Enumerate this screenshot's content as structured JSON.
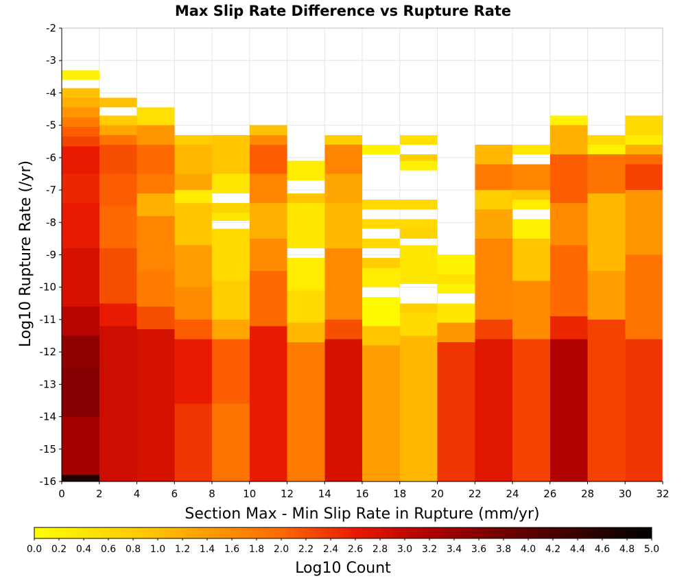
{
  "chart_data": {
    "type": "heatmap",
    "title": "Max Slip Rate Difference vs Rupture Rate",
    "xlabel": "Section Max - Min Slip Rate in Rupture (mm/yr)",
    "ylabel": "Log10 Rupture Rate (/yr)",
    "xlim": [
      0,
      32
    ],
    "ylim": [
      -16,
      -2
    ],
    "x_ticks": [
      "0",
      "2",
      "4",
      "6",
      "8",
      "10",
      "12",
      "14",
      "16",
      "18",
      "20",
      "22",
      "24",
      "26",
      "28",
      "30",
      "32"
    ],
    "y_ticks": [
      "-2",
      "-3",
      "-4",
      "-5",
      "-6",
      "-7",
      "-8",
      "-9",
      "-10",
      "-11",
      "-12",
      "-13",
      "-14",
      "-15",
      "-16"
    ],
    "x_bin_width": 2,
    "y_bin_width": 0.3,
    "colorbar": {
      "label": "Log10 Count",
      "range": [
        0,
        5
      ],
      "tick_labels": [
        "0.0",
        "0.2",
        "0.4",
        "0.6",
        "0.8",
        "1.0",
        "1.2",
        "1.4",
        "1.6",
        "1.8",
        "2.0",
        "2.2",
        "2.4",
        "2.6",
        "2.8",
        "3.0",
        "3.2",
        "3.4",
        "3.6",
        "3.8",
        "4.0",
        "4.2",
        "4.4",
        "4.6",
        "4.8",
        "5.0"
      ],
      "colormap_stops": [
        {
          "value": 0.0,
          "color": "#ffff00"
        },
        {
          "value": 1.0,
          "color": "#ffc000"
        },
        {
          "value": 2.0,
          "color": "#ff6a00"
        },
        {
          "value": 2.6,
          "color": "#e81a00"
        },
        {
          "value": 3.2,
          "color": "#b00000"
        },
        {
          "value": 3.8,
          "color": "#700000"
        },
        {
          "value": 4.4,
          "color": "#380000"
        },
        {
          "value": 5.0,
          "color": "#000000"
        }
      ]
    },
    "columns": [
      {
        "x_start": 0,
        "segments": [
          {
            "y_top": -3.3,
            "y_bottom": -3.6,
            "value": 0.2
          },
          {
            "y_top": -3.85,
            "y_bottom": -4.15,
            "value": 1.0
          },
          {
            "y_top": -4.15,
            "y_bottom": -4.45,
            "value": 1.2
          },
          {
            "y_top": -4.45,
            "y_bottom": -4.75,
            "value": 1.5
          },
          {
            "y_top": -4.75,
            "y_bottom": -5.05,
            "value": 1.8
          },
          {
            "y_top": -5.05,
            "y_bottom": -5.35,
            "value": 2.1
          },
          {
            "y_top": -5.35,
            "y_bottom": -5.65,
            "value": 2.3
          },
          {
            "y_top": -5.65,
            "y_bottom": -6.5,
            "value": 2.6
          },
          {
            "y_top": -6.5,
            "y_bottom": -7.4,
            "value": 2.5
          },
          {
            "y_top": -7.4,
            "y_bottom": -8.8,
            "value": 2.6
          },
          {
            "y_top": -8.8,
            "y_bottom": -10.6,
            "value": 2.8
          },
          {
            "y_top": -10.6,
            "y_bottom": -11.5,
            "value": 3.1
          },
          {
            "y_top": -11.5,
            "y_bottom": -12.5,
            "value": 3.5
          },
          {
            "y_top": -12.5,
            "y_bottom": -14.0,
            "value": 3.6
          },
          {
            "y_top": -14.0,
            "y_bottom": -15.8,
            "value": 3.3
          },
          {
            "y_top": -15.8,
            "y_bottom": -16.0,
            "value": 4.7
          }
        ]
      },
      {
        "x_start": 2,
        "segments": [
          {
            "y_top": -4.15,
            "y_bottom": -4.45,
            "value": 1.0
          },
          {
            "y_top": -4.7,
            "y_bottom": -5.0,
            "value": 0.8
          },
          {
            "y_top": -5.0,
            "y_bottom": -5.3,
            "value": 1.3
          },
          {
            "y_top": -5.3,
            "y_bottom": -5.6,
            "value": 1.9
          },
          {
            "y_top": -5.6,
            "y_bottom": -6.5,
            "value": 2.2
          },
          {
            "y_top": -6.5,
            "y_bottom": -7.5,
            "value": 2.1
          },
          {
            "y_top": -7.5,
            "y_bottom": -8.8,
            "value": 2.0
          },
          {
            "y_top": -8.8,
            "y_bottom": -10.5,
            "value": 2.2
          },
          {
            "y_top": -10.5,
            "y_bottom": -11.2,
            "value": 2.6
          },
          {
            "y_top": -11.2,
            "y_bottom": -16.0,
            "value": 2.9
          }
        ]
      },
      {
        "x_start": 4,
        "segments": [
          {
            "y_top": -4.45,
            "y_bottom": -5.0,
            "value": 0.5
          },
          {
            "y_top": -5.0,
            "y_bottom": -5.6,
            "value": 1.5
          },
          {
            "y_top": -5.6,
            "y_bottom": -6.5,
            "value": 2.0
          },
          {
            "y_top": -6.5,
            "y_bottom": -7.1,
            "value": 1.8
          },
          {
            "y_top": -7.1,
            "y_bottom": -7.8,
            "value": 1.2
          },
          {
            "y_top": -7.8,
            "y_bottom": -9.5,
            "value": 1.7
          },
          {
            "y_top": -9.5,
            "y_bottom": -10.6,
            "value": 1.8
          },
          {
            "y_top": -10.6,
            "y_bottom": -11.3,
            "value": 2.2
          },
          {
            "y_top": -11.3,
            "y_bottom": -16.0,
            "value": 2.8
          }
        ]
      },
      {
        "x_start": 6,
        "segments": [
          {
            "y_top": -5.3,
            "y_bottom": -5.6,
            "value": 0.8
          },
          {
            "y_top": -5.6,
            "y_bottom": -6.5,
            "value": 1.1
          },
          {
            "y_top": -6.5,
            "y_bottom": -7.0,
            "value": 1.3
          },
          {
            "y_top": -7.0,
            "y_bottom": -7.4,
            "value": 0.3
          },
          {
            "y_top": -7.4,
            "y_bottom": -8.7,
            "value": 0.9
          },
          {
            "y_top": -8.7,
            "y_bottom": -10.0,
            "value": 1.4
          },
          {
            "y_top": -10.0,
            "y_bottom": -11.0,
            "value": 1.6
          },
          {
            "y_top": -11.0,
            "y_bottom": -11.6,
            "value": 2.1
          },
          {
            "y_top": -11.6,
            "y_bottom": -13.6,
            "value": 2.6
          },
          {
            "y_top": -13.6,
            "y_bottom": -16.0,
            "value": 2.4
          }
        ]
      },
      {
        "x_start": 8,
        "segments": [
          {
            "y_top": -5.3,
            "y_bottom": -6.5,
            "value": 0.9
          },
          {
            "y_top": -6.5,
            "y_bottom": -7.1,
            "value": 0.4
          },
          {
            "y_top": -7.4,
            "y_bottom": -7.7,
            "value": 0.7
          },
          {
            "y_top": -7.7,
            "y_bottom": -7.95,
            "value": 0.4
          },
          {
            "y_top": -8.2,
            "y_bottom": -9.8,
            "value": 0.6
          },
          {
            "y_top": -9.8,
            "y_bottom": -11.0,
            "value": 0.8
          },
          {
            "y_top": -11.0,
            "y_bottom": -11.6,
            "value": 1.3
          },
          {
            "y_top": -11.6,
            "y_bottom": -13.6,
            "value": 2.1
          },
          {
            "y_top": -13.6,
            "y_bottom": -16.0,
            "value": 1.9
          }
        ]
      },
      {
        "x_start": 10,
        "segments": [
          {
            "y_top": -5.0,
            "y_bottom": -5.3,
            "value": 1.0
          },
          {
            "y_top": -5.3,
            "y_bottom": -5.6,
            "value": 1.6
          },
          {
            "y_top": -5.6,
            "y_bottom": -6.5,
            "value": 2.1
          },
          {
            "y_top": -6.5,
            "y_bottom": -7.4,
            "value": 1.7
          },
          {
            "y_top": -7.4,
            "y_bottom": -8.5,
            "value": 1.2
          },
          {
            "y_top": -8.5,
            "y_bottom": -9.5,
            "value": 1.6
          },
          {
            "y_top": -9.5,
            "y_bottom": -11.2,
            "value": 2.0
          },
          {
            "y_top": -11.2,
            "y_bottom": -16.0,
            "value": 2.6
          }
        ]
      },
      {
        "x_start": 12,
        "segments": [
          {
            "y_top": -6.1,
            "y_bottom": -6.7,
            "value": 0.3
          },
          {
            "y_top": -7.1,
            "y_bottom": -7.4,
            "value": 0.9
          },
          {
            "y_top": -7.4,
            "y_bottom": -8.8,
            "value": 0.4
          },
          {
            "y_top": -9.1,
            "y_bottom": -10.1,
            "value": 0.3
          },
          {
            "y_top": -10.1,
            "y_bottom": -11.1,
            "value": 0.6
          },
          {
            "y_top": -11.1,
            "y_bottom": -11.7,
            "value": 1.1
          },
          {
            "y_top": -11.7,
            "y_bottom": -16.0,
            "value": 1.8
          }
        ]
      },
      {
        "x_start": 14,
        "segments": [
          {
            "y_top": -5.3,
            "y_bottom": -5.6,
            "value": 0.8
          },
          {
            "y_top": -5.6,
            "y_bottom": -6.5,
            "value": 1.7
          },
          {
            "y_top": -6.5,
            "y_bottom": -7.4,
            "value": 1.3
          },
          {
            "y_top": -7.4,
            "y_bottom": -8.8,
            "value": 1.1
          },
          {
            "y_top": -8.8,
            "y_bottom": -11.0,
            "value": 1.6
          },
          {
            "y_top": -11.0,
            "y_bottom": -11.6,
            "value": 2.2
          },
          {
            "y_top": -11.6,
            "y_bottom": -16.0,
            "value": 2.8
          }
        ]
      },
      {
        "x_start": 16,
        "segments": [
          {
            "y_top": -5.6,
            "y_bottom": -5.9,
            "value": 0.2
          },
          {
            "y_top": -7.3,
            "y_bottom": -7.6,
            "value": 0.6
          },
          {
            "y_top": -7.9,
            "y_bottom": -8.2,
            "value": 0.6
          },
          {
            "y_top": -8.5,
            "y_bottom": -8.8,
            "value": 0.6
          },
          {
            "y_top": -9.1,
            "y_bottom": -9.4,
            "value": 0.8
          },
          {
            "y_top": -9.4,
            "y_bottom": -10.0,
            "value": 0.3
          },
          {
            "y_top": -10.3,
            "y_bottom": -11.2,
            "value": 0.1
          },
          {
            "y_top": -11.2,
            "y_bottom": -11.8,
            "value": 0.9
          },
          {
            "y_top": -11.8,
            "y_bottom": -16.0,
            "value": 1.4
          }
        ]
      },
      {
        "x_start": 18,
        "segments": [
          {
            "y_top": -5.3,
            "y_bottom": -5.6,
            "value": 0.5
          },
          {
            "y_top": -5.9,
            "y_bottom": -6.1,
            "value": 0.8
          },
          {
            "y_top": -6.1,
            "y_bottom": -6.4,
            "value": 0.2
          },
          {
            "y_top": -7.3,
            "y_bottom": -7.6,
            "value": 0.6
          },
          {
            "y_top": -7.9,
            "y_bottom": -8.2,
            "value": 0.6
          },
          {
            "y_top": -8.2,
            "y_bottom": -8.5,
            "value": 0.7
          },
          {
            "y_top": -8.7,
            "y_bottom": -9.9,
            "value": 0.4
          },
          {
            "y_top": -10.5,
            "y_bottom": -10.8,
            "value": 0.8
          },
          {
            "y_top": -10.8,
            "y_bottom": -11.5,
            "value": 0.6
          },
          {
            "y_top": -11.5,
            "y_bottom": -16.0,
            "value": 1.1
          }
        ]
      },
      {
        "x_start": 20,
        "segments": [
          {
            "y_top": -9.0,
            "y_bottom": -9.6,
            "value": 0.2
          },
          {
            "y_top": -9.6,
            "y_bottom": -9.9,
            "value": 0.5
          },
          {
            "y_top": -9.9,
            "y_bottom": -10.2,
            "value": 0.2
          },
          {
            "y_top": -10.5,
            "y_bottom": -11.1,
            "value": 0.4
          },
          {
            "y_top": -11.1,
            "y_bottom": -11.7,
            "value": 1.5
          },
          {
            "y_top": -11.7,
            "y_bottom": -16.0,
            "value": 2.4
          }
        ]
      },
      {
        "x_start": 22,
        "segments": [
          {
            "y_top": -5.6,
            "y_bottom": -6.2,
            "value": 1.1
          },
          {
            "y_top": -6.2,
            "y_bottom": -7.0,
            "value": 1.8
          },
          {
            "y_top": -7.0,
            "y_bottom": -7.6,
            "value": 0.8
          },
          {
            "y_top": -7.6,
            "y_bottom": -8.5,
            "value": 1.3
          },
          {
            "y_top": -8.5,
            "y_bottom": -11.0,
            "value": 1.7
          },
          {
            "y_top": -11.0,
            "y_bottom": -11.6,
            "value": 2.3
          },
          {
            "y_top": -11.6,
            "y_bottom": -16.0,
            "value": 2.7
          }
        ]
      },
      {
        "x_start": 24,
        "segments": [
          {
            "y_top": -5.6,
            "y_bottom": -5.9,
            "value": 0.4
          },
          {
            "y_top": -6.2,
            "y_bottom": -7.0,
            "value": 1.7
          },
          {
            "y_top": -7.0,
            "y_bottom": -7.3,
            "value": 0.9
          },
          {
            "y_top": -7.3,
            "y_bottom": -7.6,
            "value": 0.3
          },
          {
            "y_top": -7.9,
            "y_bottom": -8.5,
            "value": 0.2
          },
          {
            "y_top": -8.5,
            "y_bottom": -9.8,
            "value": 0.9
          },
          {
            "y_top": -9.8,
            "y_bottom": -11.6,
            "value": 1.6
          },
          {
            "y_top": -11.6,
            "y_bottom": -16.0,
            "value": 2.3
          }
        ]
      },
      {
        "x_start": 26,
        "segments": [
          {
            "y_top": -4.7,
            "y_bottom": -5.0,
            "value": 0.2
          },
          {
            "y_top": -5.0,
            "y_bottom": -5.9,
            "value": 1.2
          },
          {
            "y_top": -5.9,
            "y_bottom": -7.4,
            "value": 2.1
          },
          {
            "y_top": -7.4,
            "y_bottom": -8.7,
            "value": 1.6
          },
          {
            "y_top": -8.7,
            "y_bottom": -10.9,
            "value": 2.0
          },
          {
            "y_top": -10.9,
            "y_bottom": -11.6,
            "value": 2.5
          },
          {
            "y_top": -11.6,
            "y_bottom": -16.0,
            "value": 3.2
          }
        ]
      },
      {
        "x_start": 28,
        "segments": [
          {
            "y_top": -5.3,
            "y_bottom": -5.6,
            "value": 0.6
          },
          {
            "y_top": -5.6,
            "y_bottom": -5.9,
            "value": 0.2
          },
          {
            "y_top": -5.9,
            "y_bottom": -7.1,
            "value": 1.9
          },
          {
            "y_top": -7.1,
            "y_bottom": -9.5,
            "value": 1.1
          },
          {
            "y_top": -9.5,
            "y_bottom": -11.0,
            "value": 1.4
          },
          {
            "y_top": -11.0,
            "y_bottom": -16.0,
            "value": 2.3
          }
        ]
      },
      {
        "x_start": 30,
        "segments": [
          {
            "y_top": -4.7,
            "y_bottom": -5.3,
            "value": 0.6
          },
          {
            "y_top": -5.3,
            "y_bottom": -5.6,
            "value": 0.3
          },
          {
            "y_top": -5.6,
            "y_bottom": -5.9,
            "value": 1.2
          },
          {
            "y_top": -5.9,
            "y_bottom": -6.2,
            "value": 2.0
          },
          {
            "y_top": -6.2,
            "y_bottom": -7.0,
            "value": 2.3
          },
          {
            "y_top": -7.0,
            "y_bottom": -9.0,
            "value": 1.5
          },
          {
            "y_top": -9.0,
            "y_bottom": -11.6,
            "value": 1.9
          },
          {
            "y_top": -11.6,
            "y_bottom": -16.0,
            "value": 2.4
          }
        ]
      }
    ]
  }
}
